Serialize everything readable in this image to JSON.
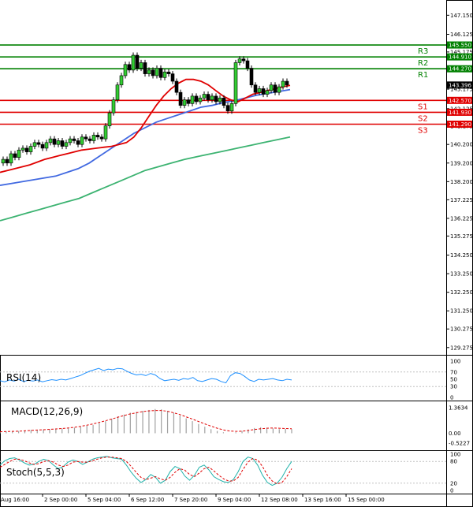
{
  "chart_data": {
    "type": "candlestick",
    "price_axis": {
      "ticks": [
        "147.150",
        "146.125",
        "145.175",
        "144.225",
        "143.175",
        "142.125",
        "141.175",
        "140.200",
        "139.200",
        "138.200",
        "137.225",
        "136.225",
        "135.275",
        "134.250",
        "133.250",
        "132.250",
        "131.250",
        "130.275",
        "129.275"
      ],
      "ylim": [
        128.8,
        147.8
      ]
    },
    "time_axis": {
      "labels": [
        "Aug 16:00",
        "2 Sep 00:00",
        "5 Sep 04:00",
        "6 Sep 12:00",
        "7 Sep 20:00",
        "9 Sep 04:00",
        "12 Sep 08:00",
        "13 Sep 16:00",
        "15 Sep 00:00"
      ],
      "label_index": [
        -1,
        10,
        21,
        32,
        43,
        54,
        65,
        76,
        87
      ]
    },
    "pivots": [
      {
        "name": "R3",
        "value": 145.55,
        "label": "145.550",
        "color": "#008000"
      },
      {
        "name": "R2",
        "value": 144.91,
        "label": "144.910",
        "color": "#008000"
      },
      {
        "name": "R1",
        "value": 144.27,
        "label": "144.270",
        "color": "#008000"
      },
      {
        "name": "S1",
        "value": 142.57,
        "label": "142.570",
        "color": "#e00000"
      },
      {
        "name": "S2",
        "value": 141.93,
        "label": "141.930",
        "color": "#e00000"
      },
      {
        "name": "S3",
        "value": 141.29,
        "label": "141.290",
        "color": "#e00000"
      }
    ],
    "current_price": {
      "value": 143.396,
      "label": "143.396"
    },
    "ohlc_close": [
      139.4,
      139.2,
      139.7,
      139.5,
      139.9,
      140.0,
      139.8,
      140.1,
      140.3,
      140.2,
      140.0,
      140.3,
      140.5,
      140.2,
      140.4,
      140.1,
      140.3,
      140.5,
      140.4,
      140.2,
      140.6,
      140.5,
      140.4,
      140.7,
      140.6,
      140.5,
      141.2,
      141.9,
      142.6,
      143.4,
      143.9,
      144.5,
      144.2,
      145.0,
      144.3,
      144.6,
      144.0,
      144.2,
      143.9,
      144.3,
      143.8,
      144.1,
      144.0,
      143.6,
      143.0,
      142.3,
      142.6,
      142.4,
      142.8,
      142.5,
      142.7,
      142.9,
      142.6,
      142.8,
      142.5,
      142.7,
      142.3,
      142.0,
      142.4,
      144.6,
      144.8,
      144.7,
      144.3,
      143.4,
      143.0,
      143.2,
      142.9,
      143.1,
      143.4,
      143.0,
      143.3,
      143.6,
      143.4
    ],
    "ma_red": [
      138.7,
      138.8,
      138.9,
      139.0,
      139.1,
      139.25,
      139.4,
      139.5,
      139.6,
      139.7,
      139.8,
      139.9,
      139.95,
      140.0,
      140.05,
      140.1,
      140.2,
      140.3,
      140.6,
      141.1,
      141.7,
      142.3,
      142.8,
      143.2,
      143.5,
      143.7,
      143.7,
      143.6,
      143.4,
      143.1,
      142.8,
      142.6,
      142.5,
      142.7,
      142.9,
      143.0,
      143.1,
      143.2,
      143.3,
      143.38
    ],
    "ma_blue": [
      138.0,
      138.1,
      138.2,
      138.3,
      138.4,
      138.5,
      138.7,
      138.9,
      139.2,
      139.6,
      140.0,
      140.4,
      140.8,
      141.1,
      141.4,
      141.6,
      141.8,
      142.0,
      142.2,
      142.3,
      142.45,
      142.55,
      142.7,
      142.85,
      142.95,
      143.05,
      143.15
    ],
    "ma_green": [
      136.1,
      136.3,
      136.5,
      136.7,
      136.9,
      137.1,
      137.3,
      137.6,
      137.9,
      138.2,
      138.5,
      138.8,
      139.0,
      139.2,
      139.4,
      139.55,
      139.7,
      139.85,
      140.0,
      140.15,
      140.3,
      140.45,
      140.6
    ],
    "rsi": {
      "label": "RSI(14)",
      "ticks": [
        "100",
        "70",
        "50",
        "30",
        "0"
      ],
      "ylim": [
        0,
        100
      ],
      "levels": [
        30,
        70
      ],
      "values": [
        46,
        43,
        48,
        45,
        50,
        44,
        47,
        45,
        48,
        43,
        46,
        49,
        47,
        50,
        48,
        52,
        56,
        60,
        66,
        72,
        76,
        80,
        74,
        78,
        76,
        80,
        79,
        72,
        66,
        62,
        64,
        60,
        66,
        62,
        52,
        46,
        48,
        50,
        47,
        52,
        50,
        55,
        46,
        44,
        48,
        52,
        50,
        44,
        40,
        60,
        68,
        66,
        58,
        48,
        44,
        50,
        48,
        50,
        52,
        48,
        46,
        50,
        48
      ]
    },
    "macd": {
      "label": "MACD(12,26,9)",
      "ticks": [
        "1.3634",
        "0.00",
        "-0.5227"
      ],
      "ylim": [
        -0.7,
        1.5
      ],
      "histogram": [
        0.1,
        0.1,
        0.12,
        0.12,
        0.15,
        0.18,
        0.18,
        0.2,
        0.22,
        0.22,
        0.25,
        0.28,
        0.3,
        0.35,
        0.4,
        0.45,
        0.55,
        0.65,
        0.78,
        0.9,
        1.0,
        1.1,
        1.15,
        1.2,
        1.25,
        1.3,
        1.28,
        1.2,
        1.1,
        0.95,
        0.8,
        0.65,
        0.5,
        0.35,
        0.22,
        0.12,
        0.05,
        0.0,
        0.05,
        0.12,
        0.2,
        0.28,
        0.32,
        0.3,
        0.26,
        0.22,
        0.24,
        0.22
      ],
      "signal": [
        0.08,
        0.09,
        0.1,
        0.11,
        0.13,
        0.15,
        0.17,
        0.19,
        0.21,
        0.23,
        0.25,
        0.28,
        0.32,
        0.37,
        0.43,
        0.5,
        0.58,
        0.67,
        0.76,
        0.86,
        0.95,
        1.04,
        1.1,
        1.16,
        1.2,
        1.22,
        1.22,
        1.18,
        1.1,
        1.0,
        0.88,
        0.76,
        0.63,
        0.5,
        0.38,
        0.27,
        0.18,
        0.12,
        0.1,
        0.11,
        0.15,
        0.2,
        0.24,
        0.27,
        0.28,
        0.27,
        0.25,
        0.24
      ]
    },
    "stoch": {
      "label": "Stoch(5,5,3)",
      "ticks": [
        "100",
        "80",
        "20",
        "0"
      ],
      "ylim": [
        0,
        100
      ],
      "levels": [
        20,
        80
      ],
      "k": [
        70,
        82,
        88,
        90,
        84,
        76,
        70,
        72,
        80,
        86,
        82,
        70,
        60,
        66,
        78,
        84,
        80,
        72,
        78,
        86,
        90,
        92,
        94,
        90,
        88,
        86,
        70,
        50,
        34,
        22,
        30,
        44,
        36,
        20,
        28,
        52,
        66,
        60,
        40,
        28,
        42,
        64,
        70,
        56,
        38,
        30,
        24,
        22,
        30,
        52,
        80,
        92,
        88,
        70,
        42,
        22,
        14,
        20,
        36,
        60,
        80
      ],
      "d": [
        64,
        72,
        80,
        86,
        86,
        82,
        76,
        72,
        74,
        80,
        82,
        78,
        70,
        66,
        70,
        78,
        80,
        78,
        78,
        82,
        86,
        90,
        92,
        92,
        90,
        88,
        80,
        66,
        50,
        36,
        30,
        34,
        38,
        32,
        28,
        36,
        50,
        60,
        56,
        44,
        38,
        48,
        60,
        64,
        54,
        42,
        32,
        26,
        26,
        36,
        58,
        78,
        88,
        84,
        66,
        42,
        26,
        18,
        22,
        38,
        60
      ]
    }
  }
}
